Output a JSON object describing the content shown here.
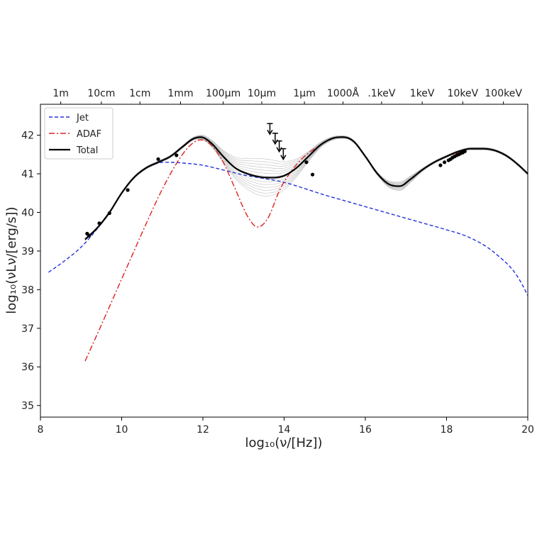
{
  "chart_data": {
    "type": "line",
    "xlabel": "log₁₀(ν/[Hz])",
    "ylabel": "log₁₀(νLν/[erg/s])",
    "xlim": [
      8,
      20
    ],
    "ylim": [
      34.7,
      42.8
    ],
    "x_ticks": [
      8,
      10,
      12,
      14,
      16,
      18,
      20
    ],
    "y_ticks": [
      35,
      36,
      37,
      38,
      39,
      40,
      41,
      42
    ],
    "top_axis_labels": [
      {
        "x": 8.5,
        "label": "1m"
      },
      {
        "x": 9.5,
        "label": "10cm"
      },
      {
        "x": 10.45,
        "label": "1cm"
      },
      {
        "x": 11.45,
        "label": "1mm"
      },
      {
        "x": 12.5,
        "label": "100μm"
      },
      {
        "x": 13.45,
        "label": "10μm"
      },
      {
        "x": 14.5,
        "label": "1μm"
      },
      {
        "x": 15.45,
        "label": "1000Å"
      },
      {
        "x": 16.4,
        "label": ".1keV"
      },
      {
        "x": 17.4,
        "label": "1keV"
      },
      {
        "x": 18.4,
        "label": "10keV"
      },
      {
        "x": 19.4,
        "label": "100keV"
      }
    ],
    "legend": {
      "position": "top-left",
      "entries": [
        {
          "name": "Jet",
          "color": "#2233dd",
          "style": "dashed"
        },
        {
          "name": "ADAF",
          "color": "#dd2222",
          "style": "dashdot"
        },
        {
          "name": "Total",
          "color": "#000000",
          "style": "solid"
        }
      ]
    },
    "series": [
      {
        "name": "Jet",
        "color": "#2233dd",
        "style": "dashed",
        "x": [
          8.2,
          8.6,
          9.0,
          9.3,
          9.7,
          10.0,
          10.3,
          10.6,
          10.9,
          11.1,
          11.5,
          12.0,
          12.5,
          13.0,
          13.5,
          14.0,
          14.5,
          15.0,
          15.5,
          16.0,
          16.5,
          17.0,
          17.5,
          18.0,
          18.5,
          19.0,
          19.3,
          19.6,
          19.8,
          20.0
        ],
        "y": [
          38.45,
          38.75,
          39.1,
          39.45,
          40.0,
          40.5,
          40.9,
          41.15,
          41.28,
          41.3,
          41.28,
          41.22,
          41.1,
          40.97,
          40.88,
          40.78,
          40.62,
          40.45,
          40.3,
          40.15,
          40.0,
          39.85,
          39.7,
          39.55,
          39.38,
          39.1,
          38.85,
          38.55,
          38.25,
          37.85
        ]
      },
      {
        "name": "ADAF",
        "color": "#dd2222",
        "style": "dashdot",
        "x": [
          9.1,
          9.4,
          9.8,
          10.2,
          10.6,
          11.0,
          11.4,
          11.7,
          11.95,
          12.2,
          12.5,
          12.8,
          13.1,
          13.35,
          13.6,
          13.9,
          14.2,
          14.5,
          14.9,
          15.2,
          15.45,
          15.7,
          16.0,
          16.3,
          16.6,
          16.85,
          17.1,
          17.4,
          17.7,
          18.0,
          18.3
        ],
        "y": [
          36.15,
          36.85,
          37.8,
          38.75,
          39.7,
          40.6,
          41.35,
          41.75,
          41.88,
          41.75,
          41.3,
          40.6,
          39.9,
          39.62,
          39.85,
          40.6,
          41.1,
          41.45,
          41.75,
          41.92,
          41.95,
          41.85,
          41.45,
          41.0,
          40.72,
          40.68,
          40.85,
          41.1,
          41.3,
          41.45,
          41.55
        ]
      },
      {
        "name": "Total",
        "color": "#000000",
        "style": "solid",
        "x": [
          9.1,
          9.4,
          9.7,
          10.0,
          10.3,
          10.6,
          10.9,
          11.2,
          11.5,
          11.75,
          11.95,
          12.2,
          12.5,
          12.8,
          13.1,
          13.4,
          13.7,
          14.0,
          14.3,
          14.6,
          14.9,
          15.2,
          15.45,
          15.7,
          16.0,
          16.3,
          16.6,
          16.85,
          17.1,
          17.4,
          17.7,
          18.0,
          18.3,
          18.6,
          18.9,
          19.2,
          19.5,
          19.8,
          20.0
        ],
        "y": [
          39.3,
          39.6,
          40.0,
          40.5,
          40.9,
          41.15,
          41.3,
          41.45,
          41.7,
          41.9,
          41.95,
          41.8,
          41.45,
          41.15,
          41.0,
          40.92,
          40.9,
          40.95,
          41.15,
          41.45,
          41.75,
          41.92,
          41.95,
          41.85,
          41.45,
          41.0,
          40.72,
          40.68,
          40.85,
          41.1,
          41.3,
          41.45,
          41.58,
          41.65,
          41.65,
          41.6,
          41.45,
          41.2,
          41.0
        ]
      }
    ],
    "data_points": {
      "color": "#000000",
      "x": [
        9.15,
        9.2,
        9.45,
        9.7,
        10.15,
        10.9,
        11.35,
        14.55,
        14.7,
        17.85,
        17.95,
        18.05,
        18.1,
        18.15,
        18.2,
        18.25,
        18.3,
        18.35,
        18.4,
        18.45
      ],
      "y": [
        39.45,
        39.4,
        39.72,
        39.98,
        40.58,
        41.38,
        41.48,
        41.3,
        40.98,
        41.22,
        41.3,
        41.35,
        41.38,
        41.42,
        41.45,
        41.48,
        41.5,
        41.53,
        41.55,
        41.58
      ]
    },
    "upper_limits": {
      "x": [
        13.65,
        13.78,
        13.88,
        13.98
      ],
      "y": [
        42.3,
        42.05,
        41.85,
        41.65
      ]
    }
  }
}
